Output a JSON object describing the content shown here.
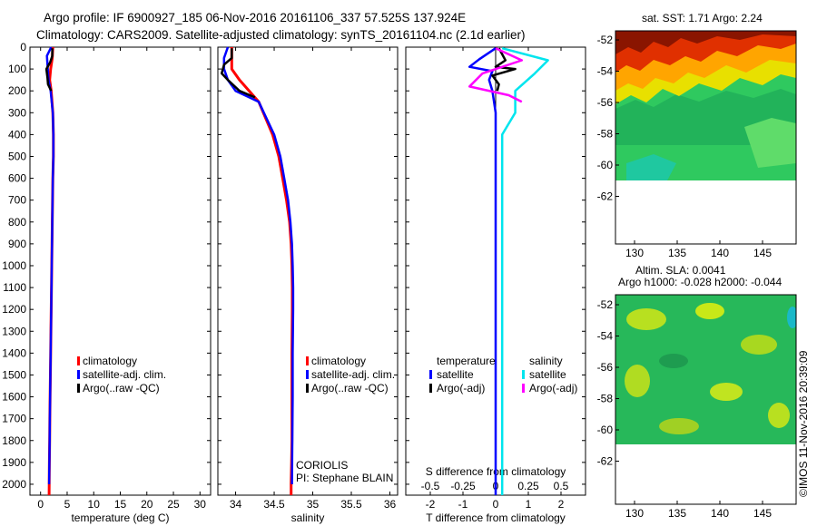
{
  "title": {
    "line1": "Argo profile: IF 6900927_185 06-Nov-2016 20161106_337 57.525S 137.924E",
    "line2": "Climatology: CARS2009. Satellite-adjusted climatology: synTS_20161104.nc (2.1d earlier)"
  },
  "colors": {
    "climatology": "#ff0000",
    "satellite": "#0000ff",
    "argo": "#000000",
    "sal_satellite": "#00e5ee",
    "sal_argo": "#ff00ff"
  },
  "legend_profile": [
    "climatology",
    "satellite-adj. clim.",
    "Argo(..raw -QC)"
  ],
  "legend_diff": {
    "temp_head": "temperature",
    "sal_head": "salinity",
    "items": [
      "satellite",
      "Argo(-adj)"
    ]
  },
  "credit": {
    "line1": "CORIOLIS",
    "line2": "PI: Stephane BLAIN"
  },
  "depth_ticks": [
    "0",
    "100",
    "200",
    "300",
    "400",
    "500",
    "600",
    "700",
    "800",
    "900",
    "1000",
    "1100",
    "1200",
    "1300",
    "1400",
    "1500",
    "1600",
    "1700",
    "1800",
    "1900",
    "2000"
  ],
  "map_sst": {
    "title": "sat. SST: 1.71  Argo: 2.24"
  },
  "map_sla": {
    "title1": "Altim. SLA: 0.0041",
    "title2": "Argo h1000: -0.028 h2000: -0.044"
  },
  "map_lat_ticks": [
    "-52",
    "-54",
    "-56",
    "-58",
    "-60",
    "-62"
  ],
  "map_lon_ticks": [
    "130",
    "135",
    "140",
    "145"
  ],
  "watermark": "©IMOS 11-Nov-2016 20:39:09",
  "chart_data": [
    {
      "type": "line",
      "xlabel": "temperature (deg C)",
      "xticks": [
        0,
        5,
        10,
        15,
        20,
        25,
        30
      ],
      "xlim": [
        -2,
        32
      ],
      "ylim": [
        2050,
        0
      ],
      "series": [
        {
          "name": "climatology",
          "x": [
            2.3,
            2.2,
            1.9,
            1.7,
            2.0,
            2.3,
            2.4,
            2.4,
            2.3,
            2.2,
            2.1,
            2.0,
            1.95,
            1.9,
            1.85,
            1.8,
            1.75,
            1.7,
            1.65,
            1.6
          ],
          "y": [
            0,
            50,
            100,
            150,
            200,
            300,
            400,
            500,
            600,
            800,
            1000,
            1200,
            1300,
            1400,
            1500,
            1600,
            1700,
            1800,
            1900,
            2050
          ]
        },
        {
          "name": "satellite-adj. clim.",
          "x": [
            2.0,
            1.2,
            1.3,
            1.5,
            1.9,
            2.3,
            2.4,
            2.4,
            2.3,
            2.2,
            2.1,
            2.0,
            1.95,
            1.9,
            1.85,
            1.8,
            1.75,
            1.7,
            1.65,
            1.6
          ],
          "y": [
            0,
            40,
            80,
            150,
            200,
            300,
            400,
            500,
            600,
            800,
            1000,
            1200,
            1300,
            1400,
            1500,
            1600,
            1700,
            1800,
            1900,
            2000
          ]
        },
        {
          "name": "Argo(..raw -QC)",
          "x": [
            2.2,
            2.2,
            1.8,
            1.1,
            1.3,
            1.4,
            2.0
          ],
          "y": [
            5,
            40,
            70,
            100,
            140,
            170,
            200
          ]
        }
      ]
    },
    {
      "type": "line",
      "xlabel": "salinity",
      "xticks": [
        34,
        34.5,
        35,
        35.5,
        36
      ],
      "xticklabels": [
        "34",
        "34.5",
        "35",
        "35.5",
        "36"
      ],
      "xlim": [
        33.77,
        36.1
      ],
      "ylim": [
        2050,
        0
      ],
      "series": [
        {
          "name": "climatology",
          "x": [
            33.95,
            33.95,
            33.95,
            34.05,
            34.3,
            34.48,
            34.56,
            34.61,
            34.66,
            34.7,
            34.72,
            34.73,
            34.735,
            34.735,
            34.73,
            34.73,
            34.73,
            34.725,
            34.72,
            34.72
          ],
          "y": [
            0,
            50,
            100,
            150,
            250,
            400,
            500,
            600,
            700,
            800,
            900,
            1000,
            1100,
            1200,
            1400,
            1600,
            1800,
            1900,
            2000,
            2050
          ]
        },
        {
          "name": "satellite-adj. clim.",
          "x": [
            33.9,
            33.85,
            33.85,
            33.9,
            34.0,
            34.3,
            34.5,
            34.58,
            34.63,
            34.68,
            34.71,
            34.73,
            34.74,
            34.745,
            34.745,
            34.74,
            34.74,
            34.735,
            34.73
          ],
          "y": [
            0,
            50,
            100,
            150,
            200,
            250,
            400,
            500,
            600,
            700,
            800,
            900,
            1000,
            1100,
            1200,
            1400,
            1600,
            1800,
            2000
          ]
        },
        {
          "name": "Argo(..raw -QC)",
          "x": [
            33.95,
            33.95,
            33.85,
            33.82,
            33.9,
            34.05,
            34.25
          ],
          "y": [
            5,
            50,
            80,
            120,
            150,
            200,
            230
          ]
        }
      ]
    },
    {
      "type": "line",
      "xlabel": "T difference from climatology",
      "xticks": [
        -2,
        -1,
        0,
        1,
        2
      ],
      "xticklabels": [
        "-2",
        "-1",
        "0",
        "1",
        "2"
      ],
      "secondary_xlabel": "S difference from climatology",
      "secondary_xticks": [
        -0.5,
        -0.25,
        0,
        0.25,
        0.5
      ],
      "secondary_xticklabels": [
        "-0.5",
        "-0.25",
        "0",
        "0.25",
        "0.5"
      ],
      "xlim": [
        -2.75,
        2.75
      ],
      "ylim": [
        2050,
        0
      ],
      "series": [
        {
          "name": "temperature satellite",
          "x": [
            0,
            -0.5,
            -0.8,
            -0.1,
            -0.2,
            -0.1,
            0.0,
            0.0,
            0.0,
            0.0,
            0.0,
            0.0,
            0.0
          ],
          "y": [
            5,
            55,
            90,
            110,
            150,
            200,
            300,
            400,
            800,
            1200,
            1600,
            2000,
            2050
          ]
        },
        {
          "name": "temperature Argo(-adj)",
          "x": [
            0.1,
            0.3,
            0.0,
            0.6,
            -0.1,
            0.1,
            0.05
          ],
          "y": [
            5,
            60,
            90,
            100,
            130,
            170,
            200
          ]
        },
        {
          "name": "salinity satellite",
          "x": [
            0.05,
            0.4,
            0.3,
            0.15,
            0.15,
            0.05,
            0.05,
            0.05,
            0.05,
            0.05,
            0.05,
            0.05
          ],
          "y": [
            5,
            60,
            120,
            200,
            300,
            400,
            800,
            1200,
            1600,
            1800,
            2000,
            2050
          ]
        },
        {
          "name": "salinity Argo(-adj)",
          "x": [
            0,
            0.2,
            -0.1,
            -0.2,
            0.1,
            0.2
          ],
          "y": [
            5,
            60,
            120,
            180,
            220,
            250
          ]
        }
      ]
    }
  ]
}
